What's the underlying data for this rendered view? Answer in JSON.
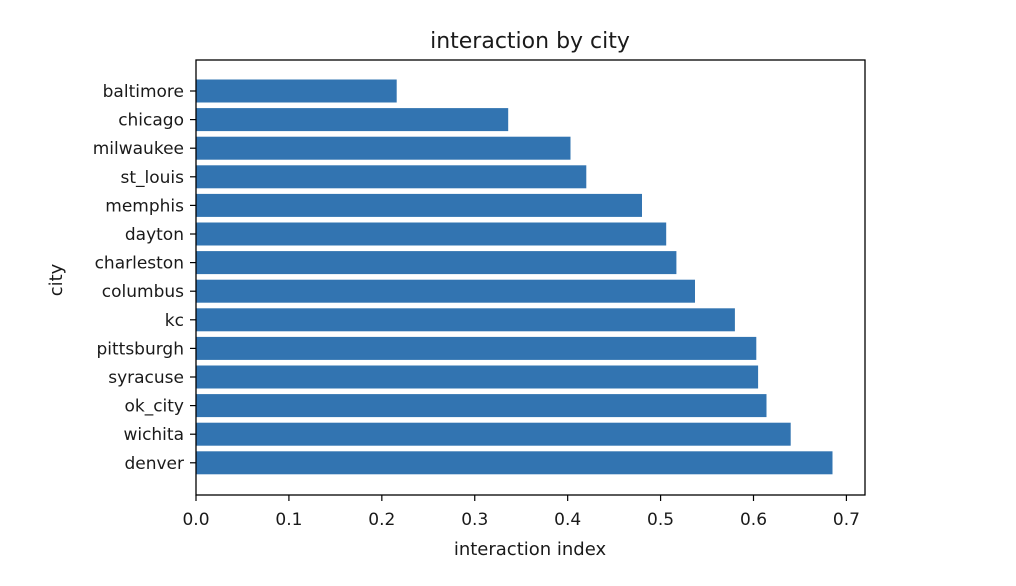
{
  "chart_data": {
    "type": "bar",
    "orientation": "horizontal",
    "title": "interaction by city",
    "xlabel": "interaction index",
    "ylabel": "city",
    "xlim": [
      0,
      0.72
    ],
    "xticks": [
      "0.0",
      "0.1",
      "0.2",
      "0.3",
      "0.4",
      "0.5",
      "0.6",
      "0.7"
    ],
    "categories": [
      "baltimore",
      "chicago",
      "milwaukee",
      "st_louis",
      "memphis",
      "dayton",
      "charleston",
      "columbus",
      "kc",
      "pittsburgh",
      "syracuse",
      "ok_city",
      "wichita",
      "denver"
    ],
    "values": [
      0.216,
      0.336,
      0.403,
      0.42,
      0.48,
      0.506,
      0.517,
      0.537,
      0.58,
      0.603,
      0.605,
      0.614,
      0.64,
      0.685
    ],
    "bar_color": "#3274b1",
    "grid": false,
    "legend": "none"
  }
}
